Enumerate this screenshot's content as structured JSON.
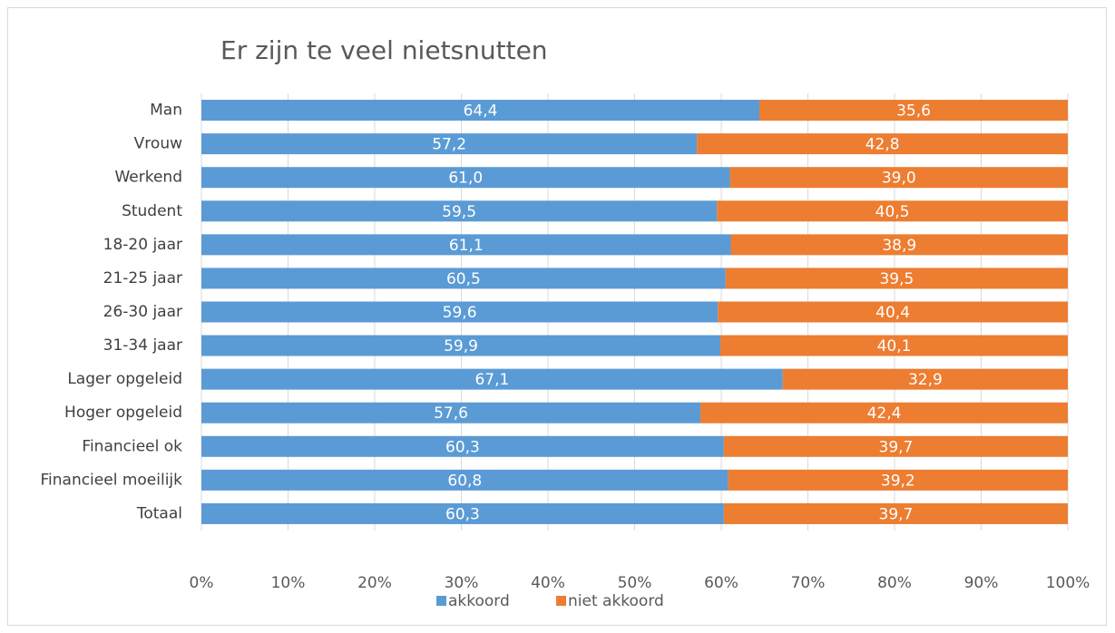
{
  "chart_data": {
    "type": "stacked-bar-horizontal",
    "title": "Er zijn te veel nietsnutten",
    "categories": [
      "Man",
      "Vrouw",
      "Werkend",
      "Student",
      "18-20 jaar",
      "21-25 jaar",
      "26-30 jaar",
      "31-34 jaar",
      "Lager opgeleid",
      "Hoger opgeleid",
      "Financieel ok",
      "Financieel moeilijk",
      "Totaal"
    ],
    "series": [
      {
        "name": "akkoord",
        "color": "#5b9bd5",
        "values": [
          64.4,
          57.2,
          61.0,
          59.5,
          61.1,
          60.5,
          59.6,
          59.9,
          67.1,
          57.6,
          60.3,
          60.8,
          60.3
        ],
        "value_labels": [
          "64,4",
          "57,2",
          "61,0",
          "59,5",
          "61,1",
          "60,5",
          "59,6",
          "59,9",
          "67,1",
          "57,6",
          "60,3",
          "60,8",
          "60,3"
        ]
      },
      {
        "name": "niet akkoord",
        "color": "#ed7d31",
        "values": [
          35.6,
          42.8,
          39.0,
          40.5,
          38.9,
          39.5,
          40.4,
          40.1,
          32.9,
          42.4,
          39.7,
          39.2,
          39.7
        ],
        "value_labels": [
          "35,6",
          "42,8",
          "39,0",
          "40,5",
          "38,9",
          "39,5",
          "40,4",
          "40,1",
          "32,9",
          "42,4",
          "39,7",
          "39,2",
          "39,7"
        ]
      }
    ],
    "xlim": [
      0,
      100
    ],
    "xticks": [
      {
        "value": 0,
        "label": "0%"
      },
      {
        "value": 10,
        "label": "10%"
      },
      {
        "value": 20,
        "label": "20%"
      },
      {
        "value": 30,
        "label": "30%"
      },
      {
        "value": 40,
        "label": "40%"
      },
      {
        "value": 50,
        "label": "50%"
      },
      {
        "value": 60,
        "label": "60%"
      },
      {
        "value": 70,
        "label": "70%"
      },
      {
        "value": 80,
        "label": "80%"
      },
      {
        "value": 90,
        "label": "90%"
      },
      {
        "value": 100,
        "label": "100%"
      }
    ],
    "grid": true,
    "legend": "bottom"
  }
}
